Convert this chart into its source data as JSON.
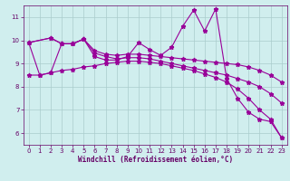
{
  "background_color": "#d0eeee",
  "line_color": "#990099",
  "grid_color": "#aacccc",
  "xlabel": "Windchill (Refroidissement éolien,°C)",
  "xlabel_color": "#660066",
  "tick_color": "#660066",
  "ylim": [
    5.5,
    11.5
  ],
  "xlim": [
    -0.5,
    23.5
  ],
  "yticks": [
    6,
    7,
    8,
    9,
    10,
    11
  ],
  "xticks": [
    0,
    1,
    2,
    3,
    4,
    5,
    6,
    7,
    8,
    9,
    10,
    11,
    12,
    13,
    14,
    15,
    16,
    17,
    18,
    19,
    20,
    21,
    22,
    23
  ],
  "lines": [
    {
      "x": [
        0,
        1,
        2,
        3,
        4,
        5,
        6,
        7,
        8,
        9,
        10,
        11,
        12,
        13,
        14,
        15,
        16,
        17,
        18,
        19,
        20,
        21,
        22,
        23
      ],
      "y": [
        9.9,
        8.5,
        8.6,
        9.85,
        9.85,
        10.05,
        9.3,
        9.15,
        9.15,
        9.3,
        9.9,
        9.6,
        9.35,
        9.7,
        10.6,
        11.3,
        10.4,
        11.35,
        8.35,
        7.5,
        6.9,
        6.6,
        6.5,
        5.8
      ]
    },
    {
      "x": [
        0,
        2,
        3,
        4,
        5,
        6,
        7,
        8,
        9,
        10,
        11,
        12,
        13,
        14,
        15,
        16,
        17,
        18,
        19,
        20,
        21,
        22,
        23
      ],
      "y": [
        9.9,
        10.1,
        9.85,
        9.85,
        10.05,
        9.55,
        9.4,
        9.35,
        9.4,
        9.4,
        9.35,
        9.3,
        9.25,
        9.2,
        9.15,
        9.1,
        9.05,
        9.0,
        8.95,
        8.85,
        8.7,
        8.5,
        8.2
      ]
    },
    {
      "x": [
        0,
        2,
        3,
        4,
        5,
        6,
        7,
        8,
        9,
        10,
        11,
        12,
        13,
        14,
        15,
        16,
        17,
        18,
        19,
        20,
        21,
        22,
        23
      ],
      "y": [
        9.9,
        10.1,
        9.85,
        9.85,
        10.05,
        9.45,
        9.3,
        9.2,
        9.25,
        9.25,
        9.2,
        9.1,
        9.0,
        8.9,
        8.8,
        8.7,
        8.6,
        8.5,
        8.35,
        8.2,
        8.0,
        7.7,
        7.3
      ]
    },
    {
      "x": [
        0,
        1,
        2,
        3,
        4,
        5,
        6,
        7,
        8,
        9,
        10,
        11,
        12,
        13,
        14,
        15,
        16,
        17,
        18,
        19,
        20,
        21,
        22,
        23
      ],
      "y": [
        8.5,
        8.5,
        8.6,
        8.7,
        8.75,
        8.85,
        8.9,
        9.0,
        9.05,
        9.1,
        9.1,
        9.05,
        9.0,
        8.9,
        8.8,
        8.7,
        8.55,
        8.4,
        8.2,
        7.9,
        7.5,
        7.0,
        6.6,
        5.8
      ]
    }
  ]
}
